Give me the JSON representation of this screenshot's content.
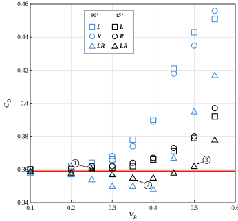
{
  "chart_data": {
    "type": "scatter",
    "xlabel": "V",
    "xlabel_sub": "R",
    "ylabel": "C",
    "ylabel_sub": "D",
    "xlim": [
      0.1,
      0.6
    ],
    "ylim": [
      0.34,
      0.46
    ],
    "xticks": [
      0.1,
      0.2,
      0.3,
      0.4,
      0.5,
      0.6
    ],
    "xtick_labels": [
      "0.1",
      "0.2",
      "0.3",
      "0.4",
      "0.5",
      "0.6"
    ],
    "yticks": [
      0.34,
      0.36,
      0.38,
      0.4,
      0.42,
      0.44,
      0.46
    ],
    "ytick_labels": [
      "0.34",
      "0.36",
      "0.38",
      "0.4",
      "0.42",
      "0.44",
      "0.46"
    ],
    "grid": true,
    "legend_placement": "top-center",
    "legend_headers": [
      "90°",
      "45°"
    ],
    "reference_line": {
      "y": 0.359,
      "color": "#e0201b"
    },
    "colors": {
      "blue": "#3f8fe0",
      "black": "#000000"
    },
    "series": [
      {
        "name": "L",
        "group": "90°",
        "marker": "square",
        "color": "#3f8fe0",
        "x": [
          0.1,
          0.2,
          0.25,
          0.3,
          0.35,
          0.4,
          0.45,
          0.5,
          0.55
        ],
        "y": [
          0.36,
          0.362,
          0.364,
          0.366,
          0.378,
          0.39,
          0.421,
          0.443,
          0.451
        ]
      },
      {
        "name": "R",
        "group": "90°",
        "marker": "circle",
        "color": "#3f8fe0",
        "x": [
          0.1,
          0.2,
          0.25,
          0.3,
          0.35,
          0.4,
          0.45,
          0.5,
          0.55
        ],
        "y": [
          0.36,
          0.361,
          0.362,
          0.368,
          0.374,
          0.389,
          0.418,
          0.435,
          0.456
        ]
      },
      {
        "name": "LR",
        "group": "90°",
        "marker": "triangle",
        "color": "#3f8fe0",
        "x": [
          0.1,
          0.2,
          0.25,
          0.3,
          0.35,
          0.4,
          0.45,
          0.5,
          0.55
        ],
        "y": [
          0.358,
          0.357,
          0.354,
          0.35,
          0.35,
          0.348,
          0.367,
          0.395,
          0.417
        ]
      },
      {
        "name": "L",
        "group": "45°",
        "marker": "square",
        "color": "#000000",
        "x": [
          0.1,
          0.2,
          0.25,
          0.3,
          0.35,
          0.4,
          0.45,
          0.5,
          0.55
        ],
        "y": [
          0.36,
          0.36,
          0.361,
          0.361,
          0.362,
          0.366,
          0.371,
          0.379,
          0.392
        ]
      },
      {
        "name": "R",
        "group": "45°",
        "marker": "circle",
        "color": "#000000",
        "x": [
          0.1,
          0.2,
          0.25,
          0.3,
          0.35,
          0.4,
          0.45,
          0.5,
          0.55
        ],
        "y": [
          0.36,
          0.361,
          0.362,
          0.362,
          0.364,
          0.367,
          0.373,
          0.38,
          0.397
        ]
      },
      {
        "name": "LR",
        "group": "45°",
        "marker": "triangle",
        "color": "#000000",
        "x": [
          0.1,
          0.2,
          0.25,
          0.3,
          0.35,
          0.4,
          0.45,
          0.5,
          0.55
        ],
        "y": [
          0.359,
          0.358,
          0.36,
          0.357,
          0.355,
          0.355,
          0.358,
          0.362,
          0.378
        ]
      }
    ],
    "annotations": [
      {
        "label": "1",
        "x": 0.25,
        "y": 0.36
      },
      {
        "label": "2",
        "x": 0.35,
        "y": 0.355
      },
      {
        "label": "3",
        "x": 0.5,
        "y": 0.362
      }
    ]
  }
}
